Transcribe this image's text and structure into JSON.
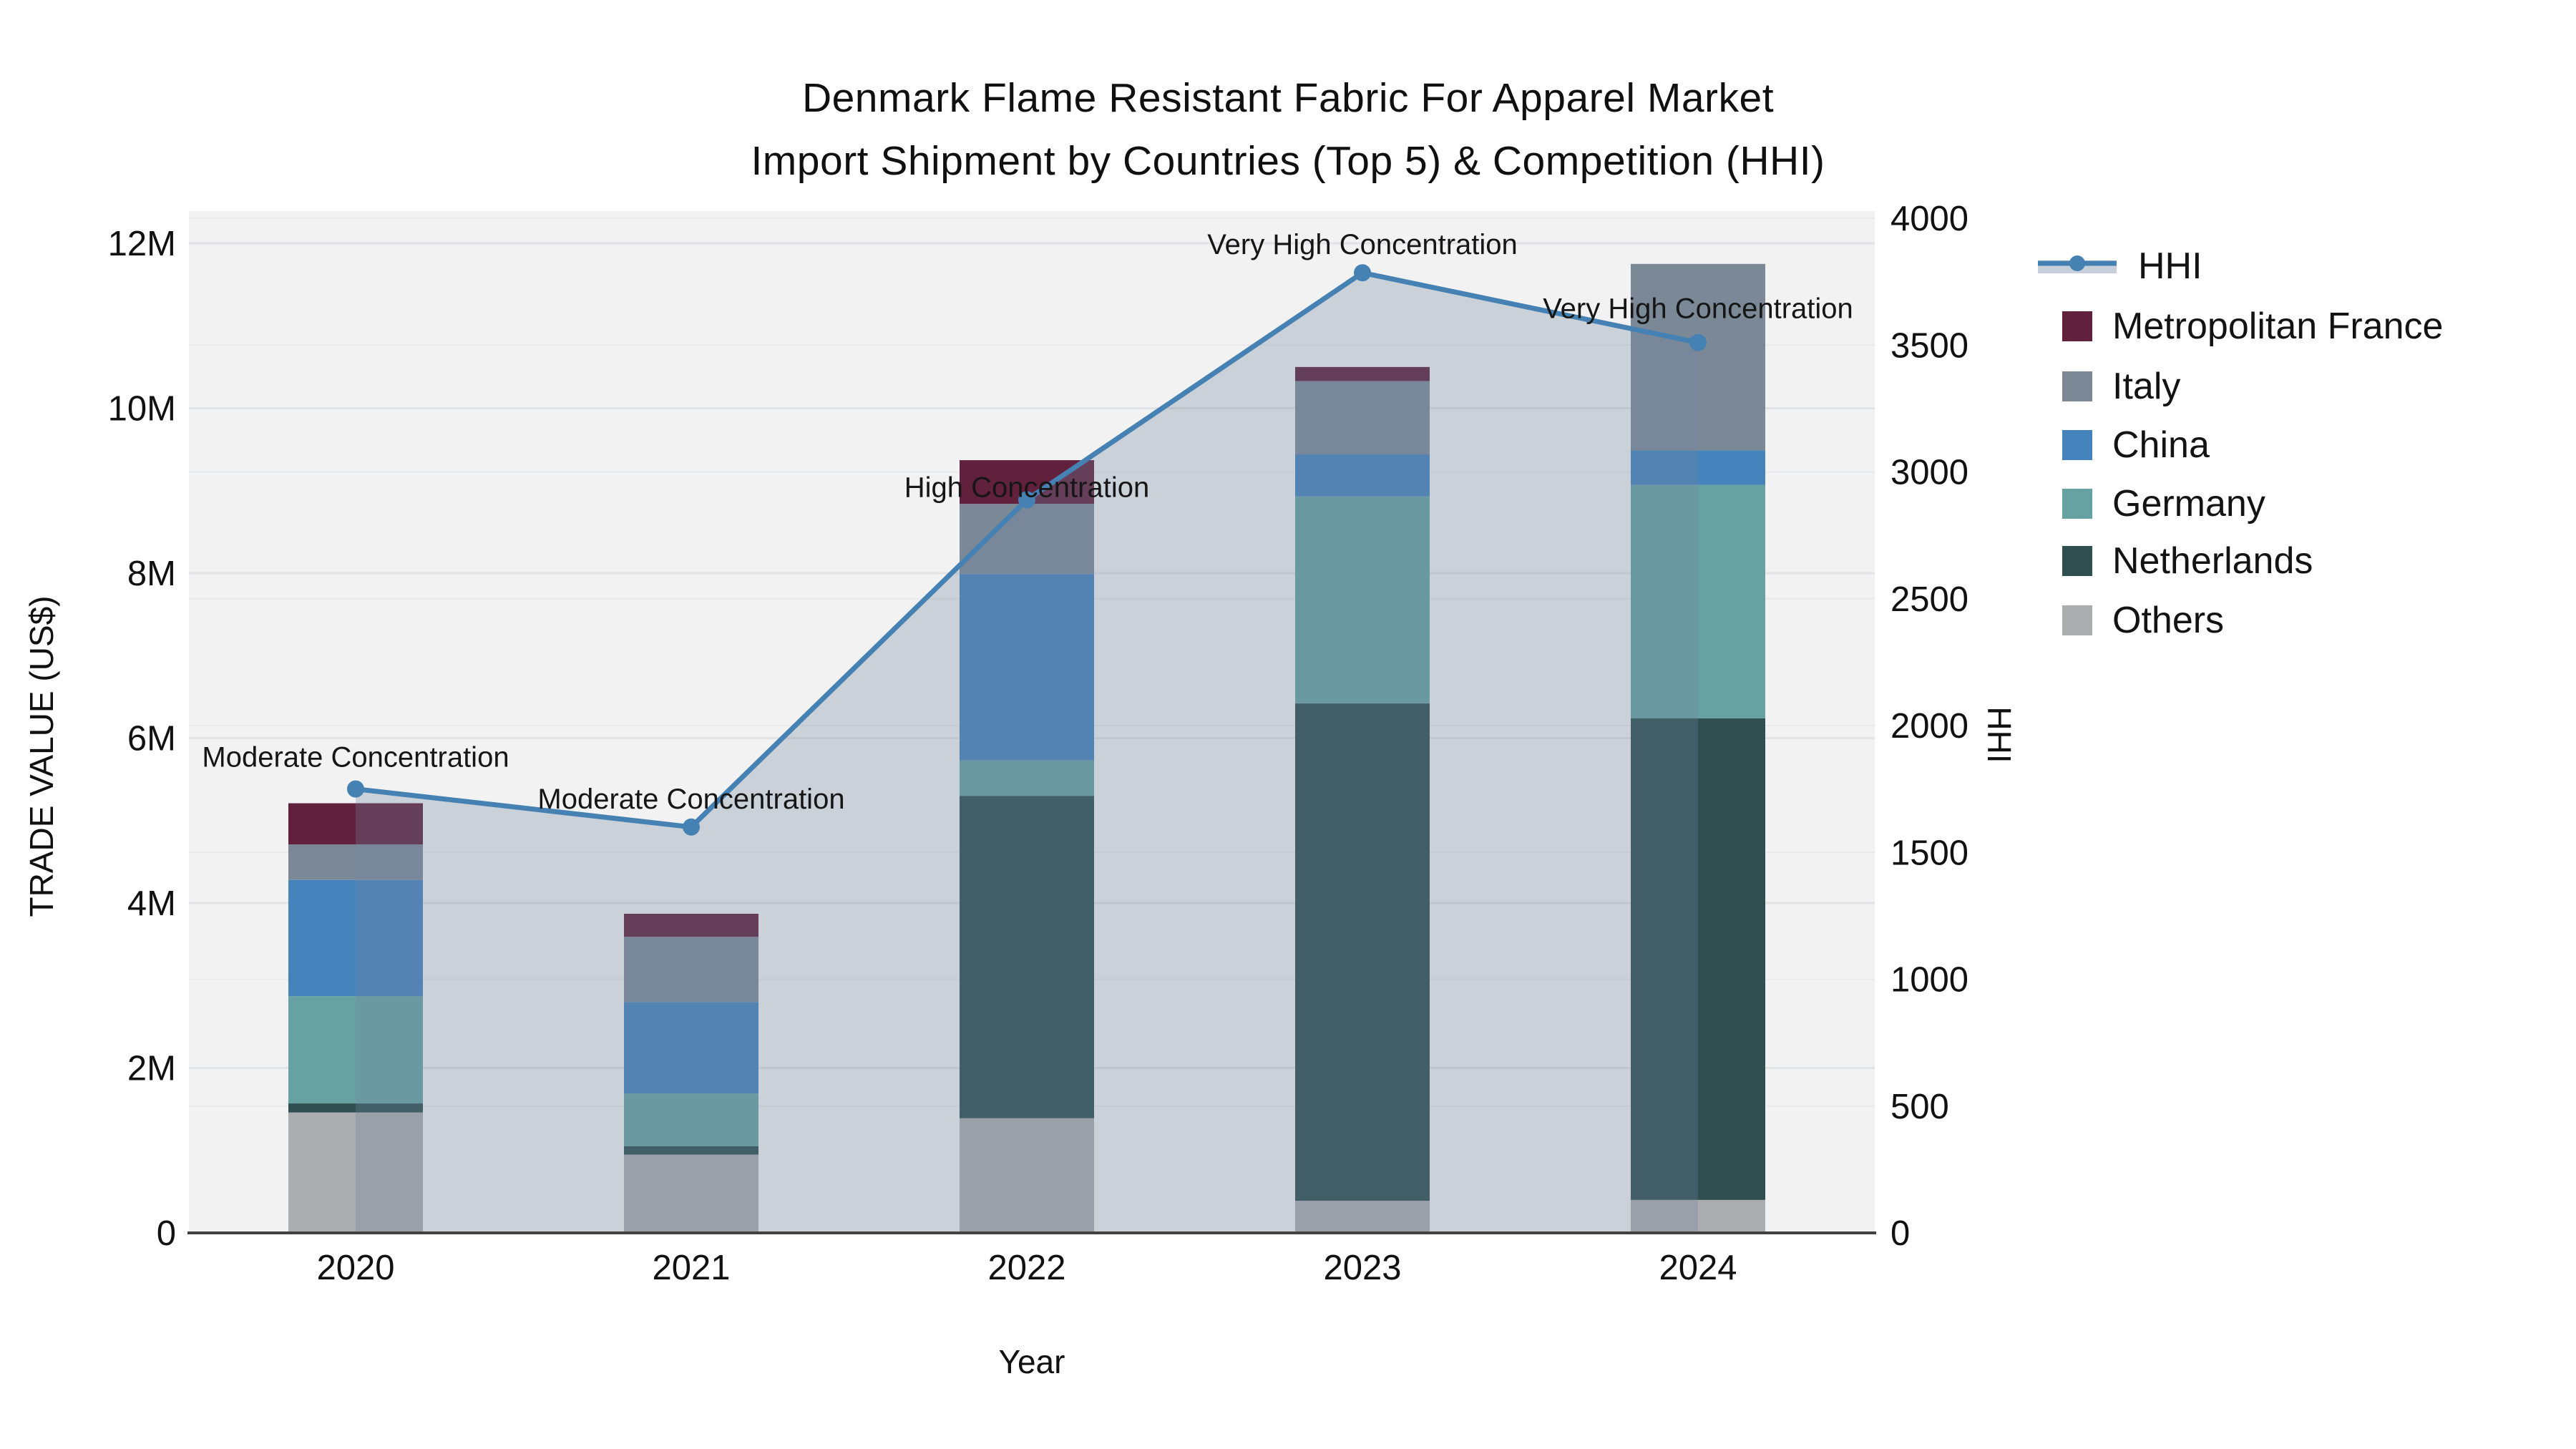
{
  "chart_data": {
    "type": "bar",
    "subtype": "stacked-bars-with-line-area",
    "title_line1": "Denmark Flame Resistant Fabric For Apparel Market",
    "title_line2": "Import Shipment by Countries (Top 5) & Competition (HHI)",
    "xlabel": "Year",
    "ylabel": "TRADE VALUE (US$)",
    "y2label": "HHI",
    "categories": [
      "2020",
      "2021",
      "2022",
      "2023",
      "2024"
    ],
    "series": [
      {
        "name": "Metropolitan France",
        "color": "#61203c",
        "values_musd": [
          0.5,
          0.28,
          0.53,
          0.17,
          0.0
        ]
      },
      {
        "name": "Italy",
        "color": "#7b8997",
        "values_musd": [
          0.43,
          0.79,
          0.85,
          0.89,
          2.26
        ]
      },
      {
        "name": "China",
        "color": "#4583bc",
        "values_musd": [
          1.41,
          1.11,
          2.26,
          0.51,
          0.42
        ]
      },
      {
        "name": "Germany",
        "color": "#67a2a2",
        "values_musd": [
          1.3,
          0.64,
          0.43,
          2.51,
          2.83
        ]
      },
      {
        "name": "Netherlands",
        "color": "#2f4f50",
        "values_musd": [
          0.11,
          0.1,
          3.91,
          6.03,
          5.84
        ]
      },
      {
        "name": "Others",
        "color": "#abadae",
        "values_musd": [
          1.46,
          0.95,
          1.39,
          0.39,
          0.4
        ]
      }
    ],
    "stack_order_bottom_to_top": [
      "Others",
      "Netherlands",
      "Germany",
      "China",
      "Italy",
      "Metropolitan France"
    ],
    "hhi_series": {
      "name": "HHI",
      "line_color": "#4681b3",
      "area_fill_color": "rgba(112,133,158,0.30)",
      "values": [
        1750,
        1600,
        2890,
        3785,
        3510
      ]
    },
    "annotations": [
      {
        "year": "2020",
        "text": "Moderate Concentration"
      },
      {
        "year": "2021",
        "text": "Moderate Concentration"
      },
      {
        "year": "2022",
        "text": "High Concentration"
      },
      {
        "year": "2023",
        "text": "Very High Concentration"
      },
      {
        "year": "2024",
        "text": "Very High Concentration"
      }
    ],
    "y_ticks": [
      "0",
      "2M",
      "4M",
      "6M",
      "8M",
      "10M",
      "12M"
    ],
    "y2_ticks": [
      "0",
      "500",
      "1000",
      "1500",
      "2000",
      "2500",
      "3000",
      "3500",
      "4000"
    ],
    "ylim_musd": [
      0,
      12.4
    ],
    "y2lim": [
      0,
      4000
    ],
    "grid": "on",
    "legend_position": "right",
    "plot_bg_color": "#f2f2f3",
    "grid_color_left": "#e2e3e5",
    "grid_color_right": "#e8e9eb",
    "axis_line_color": "#424242",
    "text_color": "#111111"
  }
}
